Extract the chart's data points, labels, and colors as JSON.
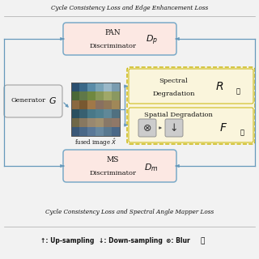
{
  "title_top": "Cycle Consistency Loss and Edge Enhancement Loss",
  "title_bottom": "Cycle Consistency Loss and Spectral Angle Mapper Loss",
  "legend_text": "↑: Up-sampling    ↓: Down-sampling   ⊗: Blur",
  "bg_color": "#f2f2f2",
  "box_pink": "#fce8e3",
  "box_yellow": "#faf5dc",
  "box_gray": "#cccccc",
  "box_white": "#eeeeee",
  "border_blue": "#7aaac8",
  "border_gray": "#aaaaaa",
  "text_color": "#111111",
  "dashed_border": "#c8b400",
  "arrow_color": "#6699bb",
  "lock_color": "#333333"
}
